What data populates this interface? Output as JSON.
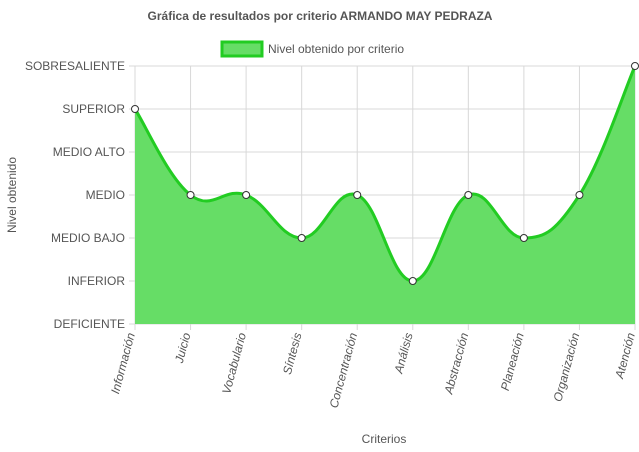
{
  "chart_data": {
    "type": "area",
    "title": "Gráfica de resultados por criterio ARMANDO MAY PEDRAZA",
    "xlabel": "Criterios",
    "ylabel": "Nivel obtenido",
    "categories": [
      "Información",
      "Juicio",
      "Vocabulario",
      "Síntesis",
      "Concentración",
      "Análisis",
      "Abstracción",
      "Planeación",
      "Organización",
      "Atención"
    ],
    "y_levels": [
      "DEFICIENTE",
      "INFERIOR",
      "MEDIO BAJO",
      "MEDIO",
      "MEDIO ALTO",
      "SUPERIOR",
      "SOBRESALIENTE"
    ],
    "series": [
      {
        "name": "Nivel obtenido por criterio",
        "values": [
          5,
          3,
          3,
          2,
          3,
          1,
          3,
          2,
          3,
          6
        ],
        "fill_color": "#66dd66",
        "line_color": "#22cc22"
      }
    ],
    "ylim": [
      0,
      6
    ],
    "grid": true,
    "legend_position": "top-center"
  }
}
